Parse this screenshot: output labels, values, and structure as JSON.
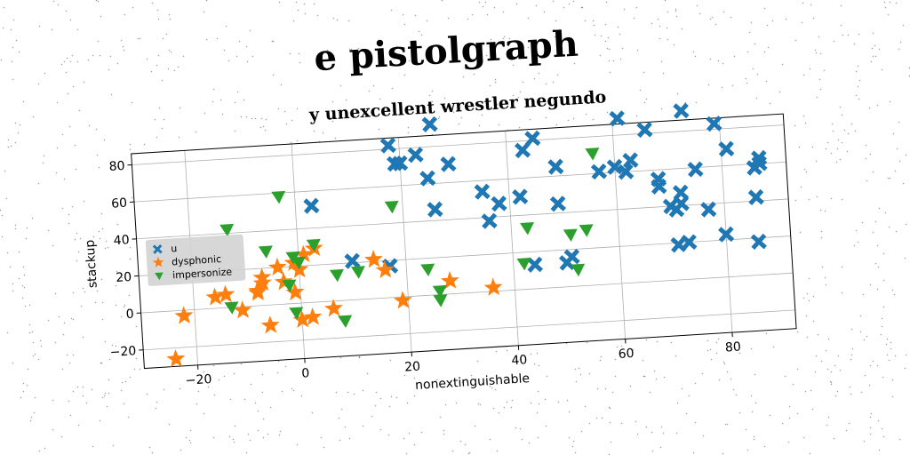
{
  "title": "e pistolgraph",
  "chart_data": {
    "type": "scatter",
    "title": "y unexcellent wrestler negundo",
    "xlabel": "nonextinguishable",
    "ylabel": "stackup",
    "xlim": [
      -30,
      92
    ],
    "ylim": [
      -30,
      86
    ],
    "xticks": [
      -20,
      0,
      20,
      40,
      60,
      80
    ],
    "yticks": [
      -20,
      0,
      20,
      40,
      60,
      80
    ],
    "grid": true,
    "legend_position": "center-left",
    "series": [
      {
        "name": "u",
        "marker": "x",
        "color": "#1f77b4",
        "x": [
          26,
          3,
          20,
          23,
          18,
          19,
          25,
          26,
          29,
          35,
          36,
          38,
          42,
          43,
          45,
          49,
          44,
          49,
          51,
          50,
          57,
          61,
          62,
          63,
          66,
          68,
          68,
          71,
          72,
          72,
          73,
          73,
          75,
          77,
          79,
          80,
          81,
          86,
          86,
          87,
          86,
          87,
          70,
          71,
          10,
          60,
          17
        ],
        "y": [
          92,
          52,
          72,
          76,
          82,
          72,
          63,
          46,
          70,
          54,
          38,
          47,
          50,
          75,
          81,
          65,
          13,
          45,
          16,
          13,
          61,
          89,
          60,
          66,
          82,
          55,
          51,
          38,
          41,
          47,
          91,
          20,
          59,
          37,
          83,
          23,
          69,
          18,
          42,
          63,
          58,
          60,
          40,
          19,
          21,
          63,
          17
        ]
      },
      {
        "name": "dysphonic",
        "marker": "*",
        "color": "#ff7f0e",
        "x": [
          -24,
          -22,
          -16,
          -14,
          -11,
          -8,
          -8,
          -7,
          -7,
          -6,
          -4,
          -3,
          -1,
          0,
          0,
          1,
          2,
          3,
          6,
          14,
          16,
          19,
          28,
          36,
          -1
        ],
        "y": [
          -26,
          -3,
          6,
          7,
          -2,
          7,
          8,
          12,
          15,
          -11,
          20,
          12,
          6,
          -9,
          18,
          26,
          -8,
          29,
          -4,
          21,
          15,
          -2,
          7,
          2,
          22
        ]
      },
      {
        "name": "impersonize",
        "marker": "v",
        "color": "#2ca02c",
        "x": [
          -13,
          -13,
          -6,
          -3,
          -2,
          -1,
          0,
          3,
          7,
          8,
          11,
          18,
          24,
          26,
          26,
          42,
          43,
          51,
          52,
          56,
          -1,
          54
        ],
        "y": [
          42,
          0,
          29,
          58,
          10,
          -5,
          22,
          31,
          14,
          -11,
          15,
          49,
          14,
          -3,
          2,
          14,
          33,
          28,
          9,
          71,
          25,
          30
        ]
      }
    ]
  }
}
